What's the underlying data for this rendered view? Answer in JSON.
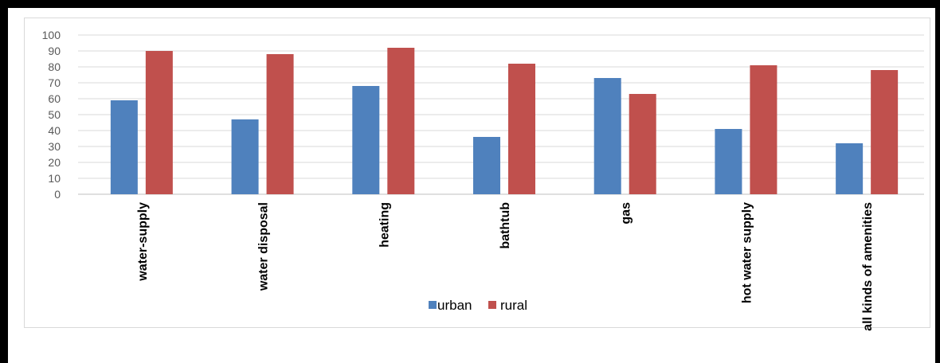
{
  "chart_data": {
    "type": "bar",
    "categories": [
      "water-supply",
      "water disposal",
      "heating",
      "bathtub",
      "gas",
      "hot water supply",
      "all kinds of amenities"
    ],
    "series": [
      {
        "name": "urban",
        "values": [
          59,
          47,
          68,
          36,
          73,
          41,
          32
        ],
        "color": "#4f81bd"
      },
      {
        "name": "rural",
        "values": [
          90,
          88,
          92,
          82,
          63,
          81,
          78
        ],
        "color": "#c0504d"
      }
    ],
    "yticks": [
      "0",
      "10",
      "20",
      "30",
      "40",
      "50",
      "60",
      "70",
      "80",
      "90",
      "100"
    ],
    "ylim": [
      0,
      100
    ],
    "grid": true,
    "legend": "bottom-center",
    "title": "",
    "xlabel": "",
    "ylabel": ""
  }
}
